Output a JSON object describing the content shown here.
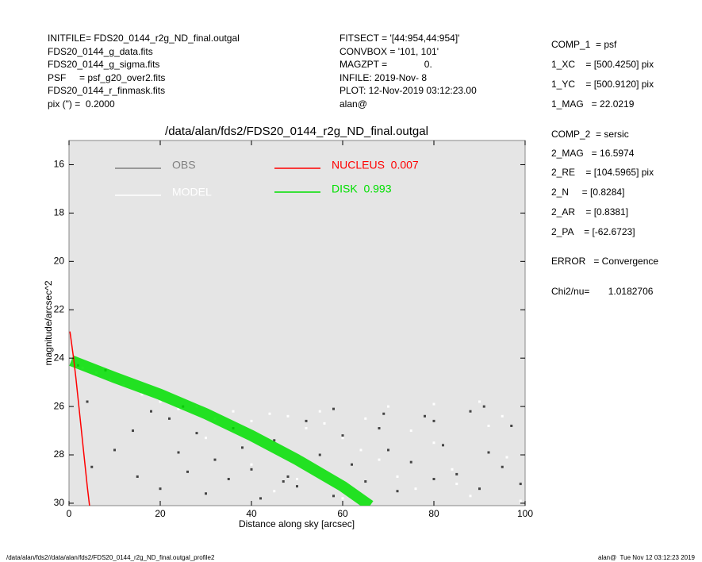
{
  "chart_data": {
    "type": "scatter",
    "title": "/data/alan/fds2/FDS20_0144_r2g_ND_final.outgal",
    "xlabel": "Distance along sky [arcsec]",
    "ylabel": "magnitude/arcsec^2",
    "xlim": [
      0,
      100
    ],
    "ylim": [
      15,
      30.1
    ],
    "y_inverted": true,
    "xticks": [
      0,
      20,
      40,
      60,
      80,
      100
    ],
    "yticks": [
      16,
      18,
      20,
      22,
      24,
      26,
      28,
      30
    ],
    "info_left": [
      "INITFILE= FDS20_0144_r2g_ND_final.outgal",
      "FDS20_0144_g_data.fits",
      "FDS20_0144_g_sigma.fits",
      "PSF     = psf_g20_over2.fits",
      "FDS20_0144_r_finmask.fits",
      "pix (\") =  0.2000"
    ],
    "info_middle": [
      "FITSECT = '[44:954,44:954]'",
      "CONVBOX = '101, 101'",
      "MAGZPT =              0.",
      "INFILE: 2019-Nov- 8",
      "PLOT: 12-Nov-2019 03:12:23.00",
      "alan@"
    ],
    "info_right": [
      "COMP_1  = psf",
      "1_XC    = [500.4250] pix",
      "1_YC    = [500.9120] pix",
      "1_MAG   = 22.0219",
      "COMP_2  = sersic",
      "2_MAG   = 16.5974",
      "2_RE    = [104.5965] pix",
      "2_N     = [0.8284]",
      "2_AR    = [0.8381]",
      "2_PA    = [-62.6723]",
      "ERROR   = Convergence",
      "Chi2/nu=       1.0182706"
    ],
    "footer_left": "/data/alan/fds2//data/alan/fds2/FDS20_0144_r2g_ND_final.outgal_profile2",
    "footer_right": "alan@  Tue Nov 12 03:12:23 2019",
    "series": [
      {
        "name": "OBS",
        "color": "#444444",
        "legend_color": "#808080",
        "style": "points",
        "x": [
          2,
          4,
          5,
          8,
          10,
          12,
          15,
          18,
          20,
          22,
          24,
          26,
          28,
          30,
          32,
          35,
          38,
          40,
          42,
          45,
          48,
          50,
          52,
          55,
          58,
          60,
          62,
          65,
          68,
          70,
          72,
          75,
          78,
          80,
          82,
          85,
          88,
          90,
          92,
          95,
          97,
          99,
          14,
          25,
          36,
          47,
          58,
          69,
          80,
          91
        ],
        "values": [
          24.3,
          25.8,
          28.5,
          24.5,
          27.8,
          25.1,
          28.9,
          26.2,
          29.4,
          26.5,
          27.9,
          28.7,
          27.1,
          29.6,
          28.2,
          29.0,
          27.7,
          28.6,
          29.8,
          27.4,
          28.9,
          29.3,
          26.6,
          28.0,
          29.7,
          27.2,
          28.4,
          29.1,
          26.9,
          27.8,
          29.5,
          28.3,
          26.4,
          29.0,
          27.6,
          28.8,
          26.2,
          29.4,
          27.9,
          28.5,
          26.8,
          29.2,
          27.0,
          26.0,
          26.9,
          29.1,
          26.1,
          26.3,
          26.6,
          26.0
        ]
      },
      {
        "name": "MODEL",
        "color": "#ffffff",
        "legend_color": "#ffffff",
        "style": "points",
        "x": [
          1,
          3,
          6,
          9,
          12,
          16,
          20,
          24,
          28,
          32,
          36,
          40,
          44,
          48,
          52,
          56,
          60,
          64,
          68,
          72,
          76,
          80,
          84,
          88,
          92,
          96,
          99,
          30,
          40,
          50,
          60,
          70,
          80,
          90,
          45,
          55,
          65,
          75,
          85,
          95
        ],
        "values": [
          24.2,
          24.4,
          24.6,
          24.9,
          25.1,
          25.5,
          25.8,
          26.1,
          26.0,
          26.5,
          26.2,
          26.6,
          26.3,
          26.4,
          26.9,
          26.7,
          27.3,
          27.8,
          28.2,
          28.9,
          29.4,
          27.5,
          28.6,
          29.7,
          26.8,
          28.1,
          29.9,
          27.3,
          28.4,
          29.0,
          29.8,
          26.0,
          25.9,
          25.8,
          29.5,
          26.2,
          26.5,
          27.0,
          29.2,
          26.4
        ]
      },
      {
        "name": "NUCLEUS  0.007",
        "color": "#ff0000",
        "legend_color": "#ff0000",
        "style": "line",
        "x": [
          0.2,
          0.5,
          1,
          1.5,
          2,
          2.5,
          3,
          3.5,
          4,
          4.5
        ],
        "values": [
          22.9,
          23.3,
          24.0,
          24.8,
          25.7,
          26.6,
          27.5,
          28.4,
          29.3,
          30.1
        ]
      },
      {
        "name": "DISK  0.993",
        "color": "#00e000",
        "legend_color": "#00e000",
        "style": "band",
        "x": [
          0.5,
          10,
          20,
          30,
          40,
          50,
          60,
          66
        ],
        "values": [
          24.1,
          24.8,
          25.5,
          26.3,
          27.2,
          28.2,
          29.3,
          30.1
        ]
      }
    ]
  }
}
